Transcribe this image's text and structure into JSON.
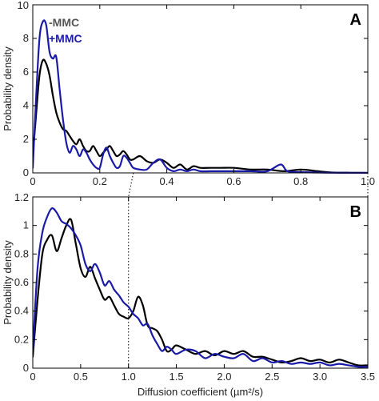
{
  "colors": {
    "minus_mmc": "#000000",
    "plus_mmc": "#1a1aa8",
    "axis": "#000000"
  },
  "chart_data": [
    {
      "type": "line",
      "panel_label": "A",
      "xlabel": "",
      "ylabel": "Probability density",
      "xlim": [
        0,
        1.0
      ],
      "ylim": [
        0,
        10
      ],
      "xticks": [
        "0",
        "0.2",
        "0.4",
        "0.6",
        "0.8",
        "1.0"
      ],
      "xtick_values": [
        0,
        0.2,
        0.4,
        0.6,
        0.8,
        1.0
      ],
      "yticks": [
        "0",
        "2",
        "4",
        "6",
        "8",
        "10"
      ],
      "ytick_values": [
        0,
        2,
        4,
        6,
        8,
        10
      ],
      "legend_position": "top-left",
      "series": [
        {
          "name": "-MMC",
          "x": [
            0,
            0.01,
            0.02,
            0.03,
            0.04,
            0.05,
            0.06,
            0.07,
            0.08,
            0.09,
            0.1,
            0.11,
            0.12,
            0.13,
            0.14,
            0.15,
            0.16,
            0.17,
            0.18,
            0.19,
            0.2,
            0.21,
            0.22,
            0.23,
            0.24,
            0.25,
            0.26,
            0.27,
            0.28,
            0.29,
            0.3,
            0.32,
            0.34,
            0.36,
            0.38,
            0.4,
            0.42,
            0.44,
            0.46,
            0.48,
            0.5,
            0.53,
            0.56,
            0.6,
            0.65,
            0.7,
            0.75,
            0.8,
            0.85,
            0.9,
            0.95,
            1.0
          ],
          "y": [
            1.0,
            3.5,
            5.8,
            6.7,
            6.5,
            5.8,
            4.6,
            3.6,
            3.0,
            2.6,
            2.5,
            2.2,
            1.9,
            1.7,
            2.0,
            1.6,
            1.3,
            1.3,
            1.6,
            1.3,
            1.0,
            1.2,
            1.4,
            1.6,
            1.3,
            1.0,
            1.1,
            1.3,
            1.1,
            0.8,
            0.8,
            1.0,
            0.7,
            0.6,
            0.8,
            0.6,
            0.3,
            0.5,
            0.2,
            0.4,
            0.3,
            0.3,
            0.3,
            0.3,
            0.2,
            0.2,
            0.1,
            0.2,
            0.1,
            0.02,
            0.01,
            0.0
          ]
        },
        {
          "name": "+MMC",
          "x": [
            0,
            0.01,
            0.02,
            0.03,
            0.04,
            0.05,
            0.06,
            0.07,
            0.08,
            0.09,
            0.1,
            0.11,
            0.12,
            0.13,
            0.14,
            0.15,
            0.16,
            0.17,
            0.18,
            0.19,
            0.2,
            0.21,
            0.22,
            0.23,
            0.24,
            0.25,
            0.26,
            0.27,
            0.28,
            0.29,
            0.3,
            0.32,
            0.34,
            0.36,
            0.38,
            0.4,
            0.42,
            0.44,
            0.46,
            0.48,
            0.5,
            0.53,
            0.56,
            0.6,
            0.65,
            0.7,
            0.74,
            0.76,
            0.8,
            0.85,
            0.9,
            0.95,
            1.0
          ],
          "y": [
            0.3,
            4.5,
            8.0,
            9.0,
            8.8,
            7.2,
            6.8,
            6.9,
            5.0,
            3.2,
            1.8,
            1.2,
            1.6,
            1.4,
            1.0,
            1.4,
            1.2,
            0.8,
            0.5,
            0.3,
            0.3,
            1.1,
            1.5,
            1.0,
            0.6,
            0.3,
            0.4,
            1.0,
            0.9,
            0.6,
            0.3,
            0.2,
            0.2,
            0.6,
            0.8,
            0.3,
            0.1,
            0.2,
            0.1,
            0.2,
            0.1,
            0.1,
            0.1,
            0.1,
            0.1,
            0.1,
            0.5,
            0.1,
            0.05,
            0.02,
            0.01,
            0.0,
            0.0
          ]
        }
      ]
    },
    {
      "type": "line",
      "panel_label": "B",
      "xlabel": "Diffusion coefficient (µm²/s)",
      "ylabel": "Probability density",
      "xlim": [
        0,
        3.5
      ],
      "ylim": [
        0,
        1.2
      ],
      "xticks": [
        "0",
        "0.5",
        "1.0",
        "1.5",
        "2.0",
        "2.5",
        "3.0",
        "3.5"
      ],
      "xtick_values": [
        0,
        0.5,
        1.0,
        1.5,
        2.0,
        2.5,
        3.0,
        3.5
      ],
      "yticks": [
        "0",
        "0.2",
        "0.4",
        "0.6",
        "0.8",
        "1",
        "1.2"
      ],
      "ytick_values": [
        0,
        0.2,
        0.4,
        0.6,
        0.8,
        1.0,
        1.2
      ],
      "reference_line_x": 1.0,
      "series": [
        {
          "name": "-MMC",
          "x": [
            0,
            0.05,
            0.1,
            0.15,
            0.2,
            0.25,
            0.3,
            0.35,
            0.4,
            0.45,
            0.5,
            0.55,
            0.6,
            0.65,
            0.7,
            0.75,
            0.8,
            0.85,
            0.9,
            0.95,
            1.0,
            1.05,
            1.1,
            1.15,
            1.2,
            1.25,
            1.3,
            1.35,
            1.4,
            1.45,
            1.5,
            1.6,
            1.7,
            1.8,
            1.9,
            2.0,
            2.1,
            2.2,
            2.3,
            2.4,
            2.5,
            2.6,
            2.7,
            2.8,
            2.9,
            3.0,
            3.1,
            3.2,
            3.3,
            3.4,
            3.5
          ],
          "y": [
            0.08,
            0.48,
            0.8,
            0.9,
            0.93,
            0.82,
            0.91,
            1.0,
            1.04,
            0.87,
            0.7,
            0.64,
            0.71,
            0.63,
            0.55,
            0.48,
            0.5,
            0.44,
            0.38,
            0.36,
            0.35,
            0.4,
            0.5,
            0.44,
            0.3,
            0.28,
            0.26,
            0.2,
            0.12,
            0.13,
            0.16,
            0.13,
            0.1,
            0.12,
            0.09,
            0.12,
            0.1,
            0.12,
            0.08,
            0.08,
            0.06,
            0.04,
            0.05,
            0.07,
            0.05,
            0.06,
            0.04,
            0.06,
            0.04,
            0.02,
            0.02
          ]
        },
        {
          "name": "+MMC",
          "x": [
            0,
            0.05,
            0.1,
            0.15,
            0.2,
            0.25,
            0.3,
            0.35,
            0.4,
            0.45,
            0.5,
            0.55,
            0.6,
            0.65,
            0.7,
            0.75,
            0.8,
            0.85,
            0.9,
            0.95,
            1.0,
            1.05,
            1.1,
            1.15,
            1.2,
            1.25,
            1.3,
            1.35,
            1.4,
            1.45,
            1.5,
            1.6,
            1.7,
            1.8,
            1.9,
            2.0,
            2.1,
            2.2,
            2.3,
            2.4,
            2.5,
            2.6,
            2.7,
            2.8,
            2.9,
            3.0,
            3.1,
            3.2,
            3.3,
            3.4,
            3.5
          ],
          "y": [
            0.12,
            0.7,
            0.95,
            1.06,
            1.12,
            1.09,
            1.03,
            1.01,
            0.98,
            0.93,
            0.86,
            0.73,
            0.68,
            0.73,
            0.67,
            0.58,
            0.61,
            0.55,
            0.51,
            0.46,
            0.43,
            0.38,
            0.35,
            0.3,
            0.31,
            0.23,
            0.17,
            0.12,
            0.15,
            0.13,
            0.1,
            0.13,
            0.12,
            0.07,
            0.1,
            0.08,
            0.07,
            0.1,
            0.05,
            0.07,
            0.04,
            0.05,
            0.03,
            0.04,
            0.03,
            0.04,
            0.02,
            0.03,
            0.02,
            0.01,
            0.01
          ]
        }
      ]
    }
  ]
}
